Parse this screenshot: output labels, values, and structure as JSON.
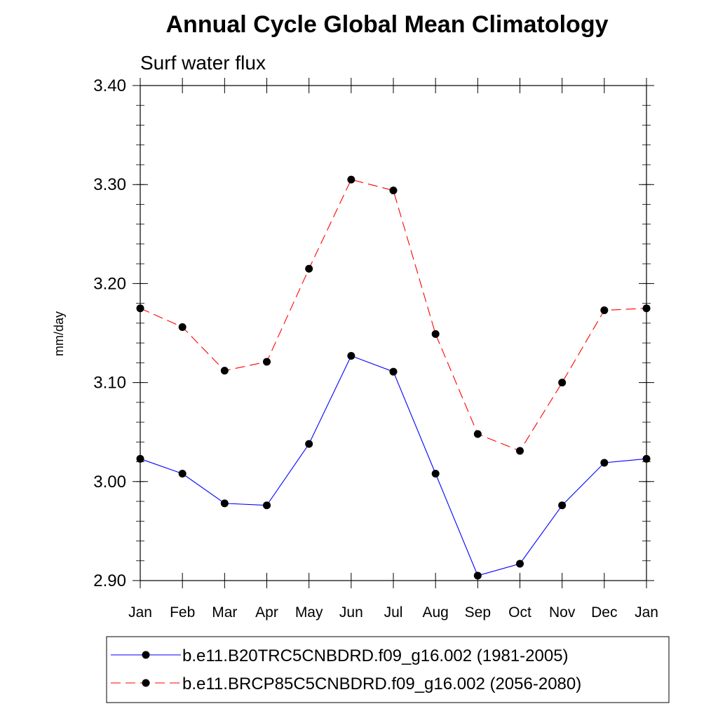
{
  "chart_data": {
    "type": "line",
    "title": "Annual Cycle Global Mean Climatology",
    "subtitle": "Surf water flux",
    "ylabel": "mm/day",
    "xlabel": "",
    "categories": [
      "Jan",
      "Feb",
      "Mar",
      "Apr",
      "May",
      "Jun",
      "Jul",
      "Aug",
      "Sep",
      "Oct",
      "Nov",
      "Dec",
      "Jan"
    ],
    "ylim": [
      2.9,
      3.4
    ],
    "yticks": [
      "2.90",
      "3.00",
      "3.10",
      "3.20",
      "3.30",
      "3.40"
    ],
    "grid": false,
    "legend_position": "bottom",
    "series": [
      {
        "name": "b.e11.B20TRC5CNBDRD.f09_g16.002 (1981-2005)",
        "color": "#0000ff",
        "dash": "solid",
        "values": [
          3.023,
          3.008,
          2.978,
          2.976,
          3.038,
          3.127,
          3.111,
          3.008,
          2.905,
          2.917,
          2.976,
          3.019,
          3.023
        ]
      },
      {
        "name": "b.e11.BRCP85C5CNBDRD.f09_g16.002 (2056-2080)",
        "color": "#ff0000",
        "dash": "dashed",
        "values": [
          3.175,
          3.156,
          3.112,
          3.121,
          3.215,
          3.305,
          3.294,
          3.149,
          3.048,
          3.031,
          3.1,
          3.173,
          3.175
        ]
      }
    ]
  }
}
